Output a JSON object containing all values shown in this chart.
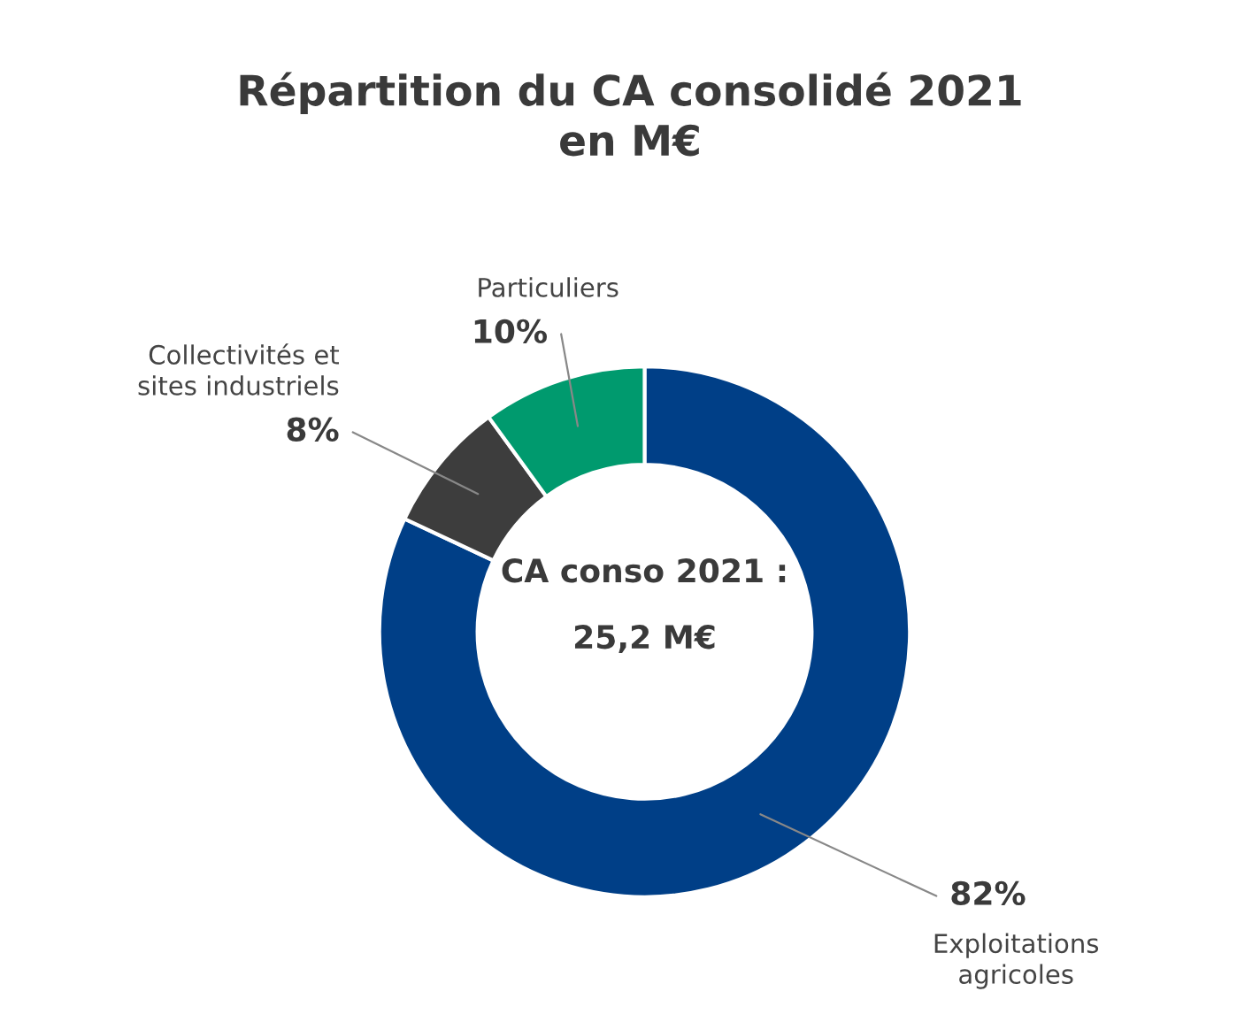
{
  "chart_data": {
    "type": "donut",
    "title": "Répartition du CA consolidé 2021\nen M€",
    "categories": [
      "Exploitations\nagricoles",
      "Collectivités et\nsites industriels",
      "Particuliers"
    ],
    "values": [
      82,
      8,
      10
    ],
    "colors": [
      "#003f87",
      "#3d3d3d",
      "#009a6e"
    ],
    "value_labels": [
      "82%",
      "8%",
      "10%"
    ],
    "annotations": [
      "CA conso 2021 :",
      "25,2 M€"
    ]
  }
}
